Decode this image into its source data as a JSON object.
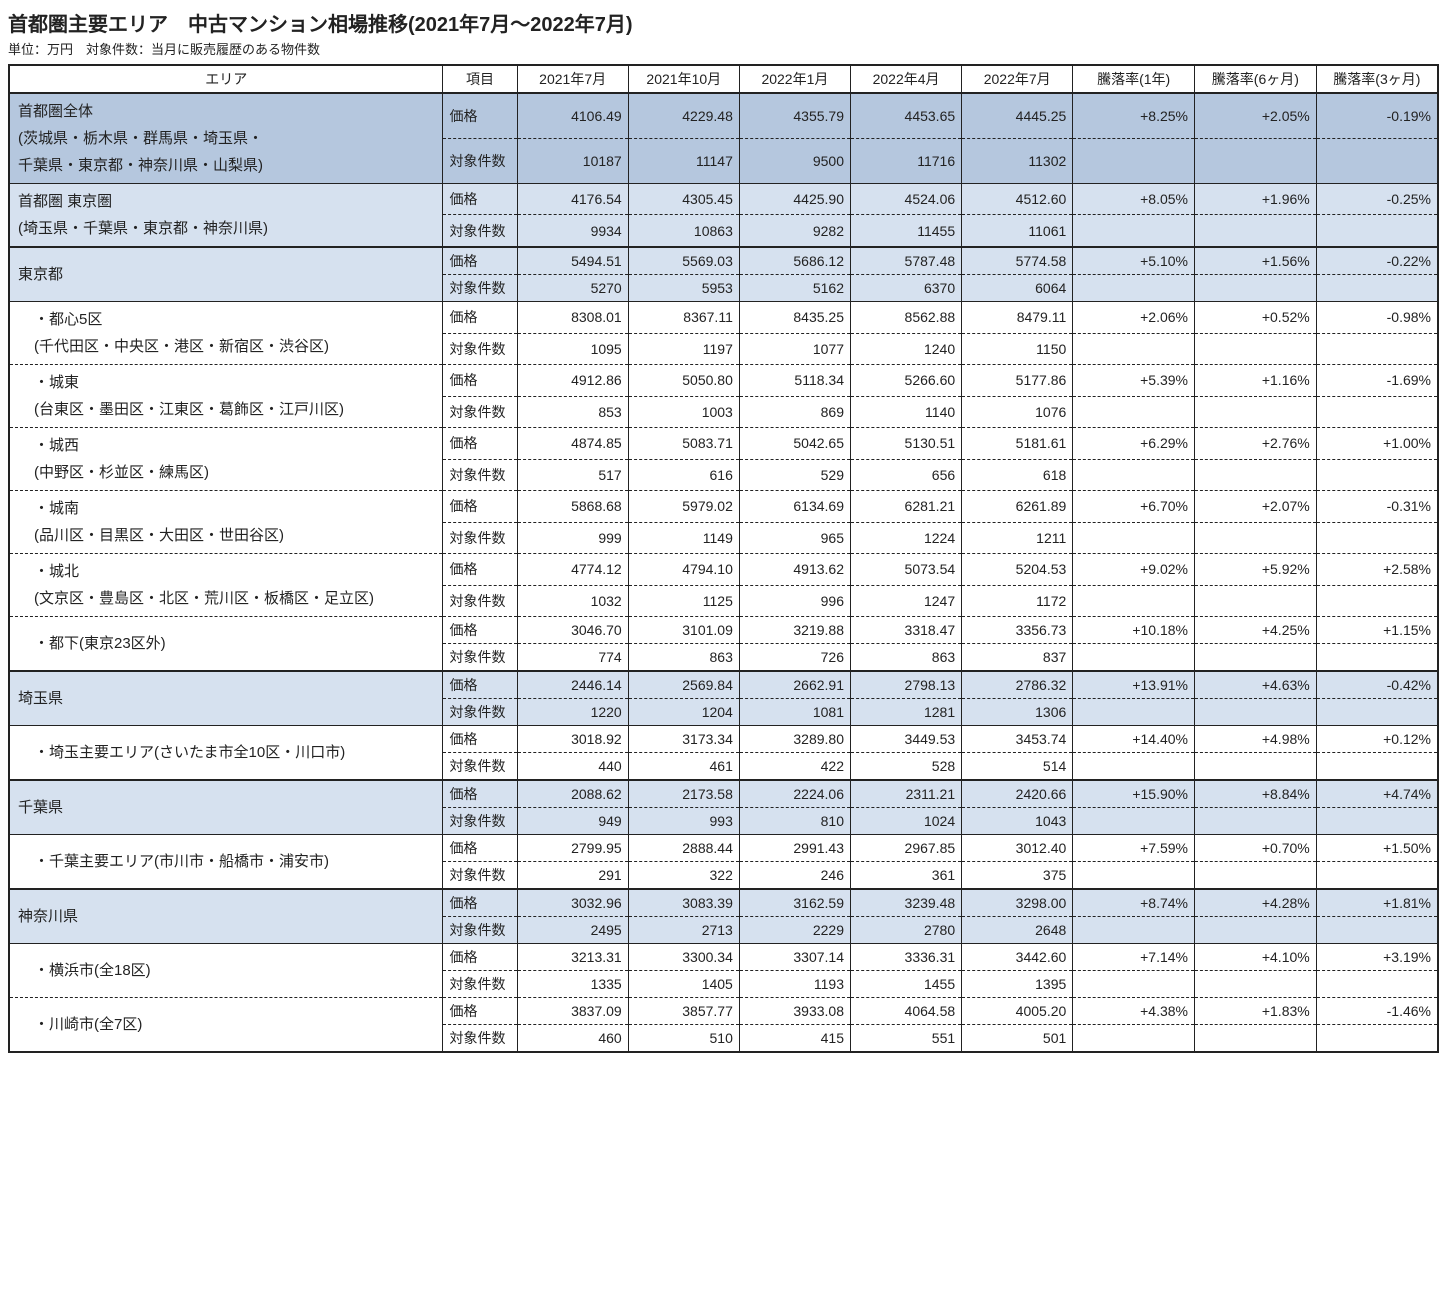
{
  "title": "首都圏主要エリア　中古マンション相場推移(2021年7月～2022年7月)",
  "subtitle": "単位：万円　対象件数：当月に販売履歴のある物件数",
  "colors": {
    "shade_dark": "#b5c7de",
    "shade_light": "#d6e1ef",
    "border": "#222222",
    "background": "#ffffff"
  },
  "header": {
    "area": "エリア",
    "item": "項目",
    "periods": [
      "2021年7月",
      "2021年10月",
      "2022年1月",
      "2022年4月",
      "2022年7月"
    ],
    "rates": [
      "騰落率(1年)",
      "騰落率(6ヶ月)",
      "騰落率(3ヶ月)"
    ]
  },
  "metric_labels": {
    "price": "価格",
    "count": "対象件数"
  },
  "rows": [
    {
      "area": "首都圏全体\n(茨城県・栃木県・群馬県・埼玉県・\n千葉県・東京都・神奈川県・山梨県)",
      "shade": "dark",
      "group_end": "solid",
      "indent": 0,
      "price": [
        "4106.49",
        "4229.48",
        "4355.79",
        "4453.65",
        "4445.25"
      ],
      "rates": [
        "+8.25%",
        "+2.05%",
        "-0.19%"
      ],
      "count": [
        "10187",
        "11147",
        "9500",
        "11716",
        "11302"
      ]
    },
    {
      "area": "首都圏 東京圏\n(埼玉県・千葉県・東京都・神奈川県)",
      "shade": "light",
      "group_end": "heavy",
      "indent": 0,
      "price": [
        "4176.54",
        "4305.45",
        "4425.90",
        "4524.06",
        "4512.60"
      ],
      "rates": [
        "+8.05%",
        "+1.96%",
        "-0.25%"
      ],
      "count": [
        "9934",
        "10863",
        "9282",
        "11455",
        "11061"
      ]
    },
    {
      "area": "東京都",
      "shade": "light",
      "group_end": "solid",
      "indent": 0,
      "price": [
        "5494.51",
        "5569.03",
        "5686.12",
        "5787.48",
        "5774.58"
      ],
      "rates": [
        "+5.10%",
        "+1.56%",
        "-0.22%"
      ],
      "count": [
        "5270",
        "5953",
        "5162",
        "6370",
        "6064"
      ]
    },
    {
      "area": "・都心5区\n(千代田区・中央区・港区・新宿区・渋谷区)",
      "shade": "none",
      "group_end": "dash",
      "indent": 1,
      "price": [
        "8308.01",
        "8367.11",
        "8435.25",
        "8562.88",
        "8479.11"
      ],
      "rates": [
        "+2.06%",
        "+0.52%",
        "-0.98%"
      ],
      "count": [
        "1095",
        "1197",
        "1077",
        "1240",
        "1150"
      ]
    },
    {
      "area": "・城東\n(台東区・墨田区・江東区・葛飾区・江戸川区)",
      "shade": "none",
      "group_end": "dash",
      "indent": 1,
      "price": [
        "4912.86",
        "5050.80",
        "5118.34",
        "5266.60",
        "5177.86"
      ],
      "rates": [
        "+5.39%",
        "+1.16%",
        "-1.69%"
      ],
      "count": [
        "853",
        "1003",
        "869",
        "1140",
        "1076"
      ]
    },
    {
      "area": "・城西\n(中野区・杉並区・練馬区)",
      "shade": "none",
      "group_end": "dash",
      "indent": 1,
      "price": [
        "4874.85",
        "5083.71",
        "5042.65",
        "5130.51",
        "5181.61"
      ],
      "rates": [
        "+6.29%",
        "+2.76%",
        "+1.00%"
      ],
      "count": [
        "517",
        "616",
        "529",
        "656",
        "618"
      ]
    },
    {
      "area": "・城南\n(品川区・目黒区・大田区・世田谷区)",
      "shade": "none",
      "group_end": "dash",
      "indent": 1,
      "price": [
        "5868.68",
        "5979.02",
        "6134.69",
        "6281.21",
        "6261.89"
      ],
      "rates": [
        "+6.70%",
        "+2.07%",
        "-0.31%"
      ],
      "count": [
        "999",
        "1149",
        "965",
        "1224",
        "1211"
      ]
    },
    {
      "area": "・城北\n(文京区・豊島区・北区・荒川区・板橋区・足立区)",
      "shade": "none",
      "group_end": "dash",
      "indent": 1,
      "price": [
        "4774.12",
        "4794.10",
        "4913.62",
        "5073.54",
        "5204.53"
      ],
      "rates": [
        "+9.02%",
        "+5.92%",
        "+2.58%"
      ],
      "count": [
        "1032",
        "1125",
        "996",
        "1247",
        "1172"
      ]
    },
    {
      "area": "・都下(東京23区外)",
      "shade": "none",
      "group_end": "heavy",
      "indent": 1,
      "compact": true,
      "price": [
        "3046.70",
        "3101.09",
        "3219.88",
        "3318.47",
        "3356.73"
      ],
      "rates": [
        "+10.18%",
        "+4.25%",
        "+1.15%"
      ],
      "count": [
        "774",
        "863",
        "726",
        "863",
        "837"
      ]
    },
    {
      "area": "埼玉県",
      "shade": "light",
      "group_end": "solid",
      "indent": 0,
      "price": [
        "2446.14",
        "2569.84",
        "2662.91",
        "2798.13",
        "2786.32"
      ],
      "rates": [
        "+13.91%",
        "+4.63%",
        "-0.42%"
      ],
      "count": [
        "1220",
        "1204",
        "1081",
        "1281",
        "1306"
      ]
    },
    {
      "area": "・埼玉主要エリア(さいたま市全10区・川口市)",
      "shade": "none",
      "group_end": "heavy",
      "indent": 1,
      "compact": true,
      "price": [
        "3018.92",
        "3173.34",
        "3289.80",
        "3449.53",
        "3453.74"
      ],
      "rates": [
        "+14.40%",
        "+4.98%",
        "+0.12%"
      ],
      "count": [
        "440",
        "461",
        "422",
        "528",
        "514"
      ]
    },
    {
      "area": "千葉県",
      "shade": "light",
      "group_end": "solid",
      "indent": 0,
      "price": [
        "2088.62",
        "2173.58",
        "2224.06",
        "2311.21",
        "2420.66"
      ],
      "rates": [
        "+15.90%",
        "+8.84%",
        "+4.74%"
      ],
      "count": [
        "949",
        "993",
        "810",
        "1024",
        "1043"
      ]
    },
    {
      "area": "・千葉主要エリア(市川市・船橋市・浦安市)",
      "shade": "none",
      "group_end": "heavy",
      "indent": 1,
      "compact": true,
      "price": [
        "2799.95",
        "2888.44",
        "2991.43",
        "2967.85",
        "3012.40"
      ],
      "rates": [
        "+7.59%",
        "+0.70%",
        "+1.50%"
      ],
      "count": [
        "291",
        "322",
        "246",
        "361",
        "375"
      ]
    },
    {
      "area": "神奈川県",
      "shade": "light",
      "group_end": "solid",
      "indent": 0,
      "price": [
        "3032.96",
        "3083.39",
        "3162.59",
        "3239.48",
        "3298.00"
      ],
      "rates": [
        "+8.74%",
        "+4.28%",
        "+1.81%"
      ],
      "count": [
        "2495",
        "2713",
        "2229",
        "2780",
        "2648"
      ]
    },
    {
      "area": "・横浜市(全18区)",
      "shade": "none",
      "group_end": "dash",
      "indent": 1,
      "compact": true,
      "price": [
        "3213.31",
        "3300.34",
        "3307.14",
        "3336.31",
        "3442.60"
      ],
      "rates": [
        "+7.14%",
        "+4.10%",
        "+3.19%"
      ],
      "count": [
        "1335",
        "1405",
        "1193",
        "1455",
        "1395"
      ]
    },
    {
      "area": "・川崎市(全7区)",
      "shade": "none",
      "group_end": "heavy",
      "indent": 1,
      "compact": true,
      "price": [
        "3837.09",
        "3857.77",
        "3933.08",
        "4064.58",
        "4005.20"
      ],
      "rates": [
        "+4.38%",
        "+1.83%",
        "-1.46%"
      ],
      "count": [
        "460",
        "510",
        "415",
        "551",
        "501"
      ]
    }
  ]
}
